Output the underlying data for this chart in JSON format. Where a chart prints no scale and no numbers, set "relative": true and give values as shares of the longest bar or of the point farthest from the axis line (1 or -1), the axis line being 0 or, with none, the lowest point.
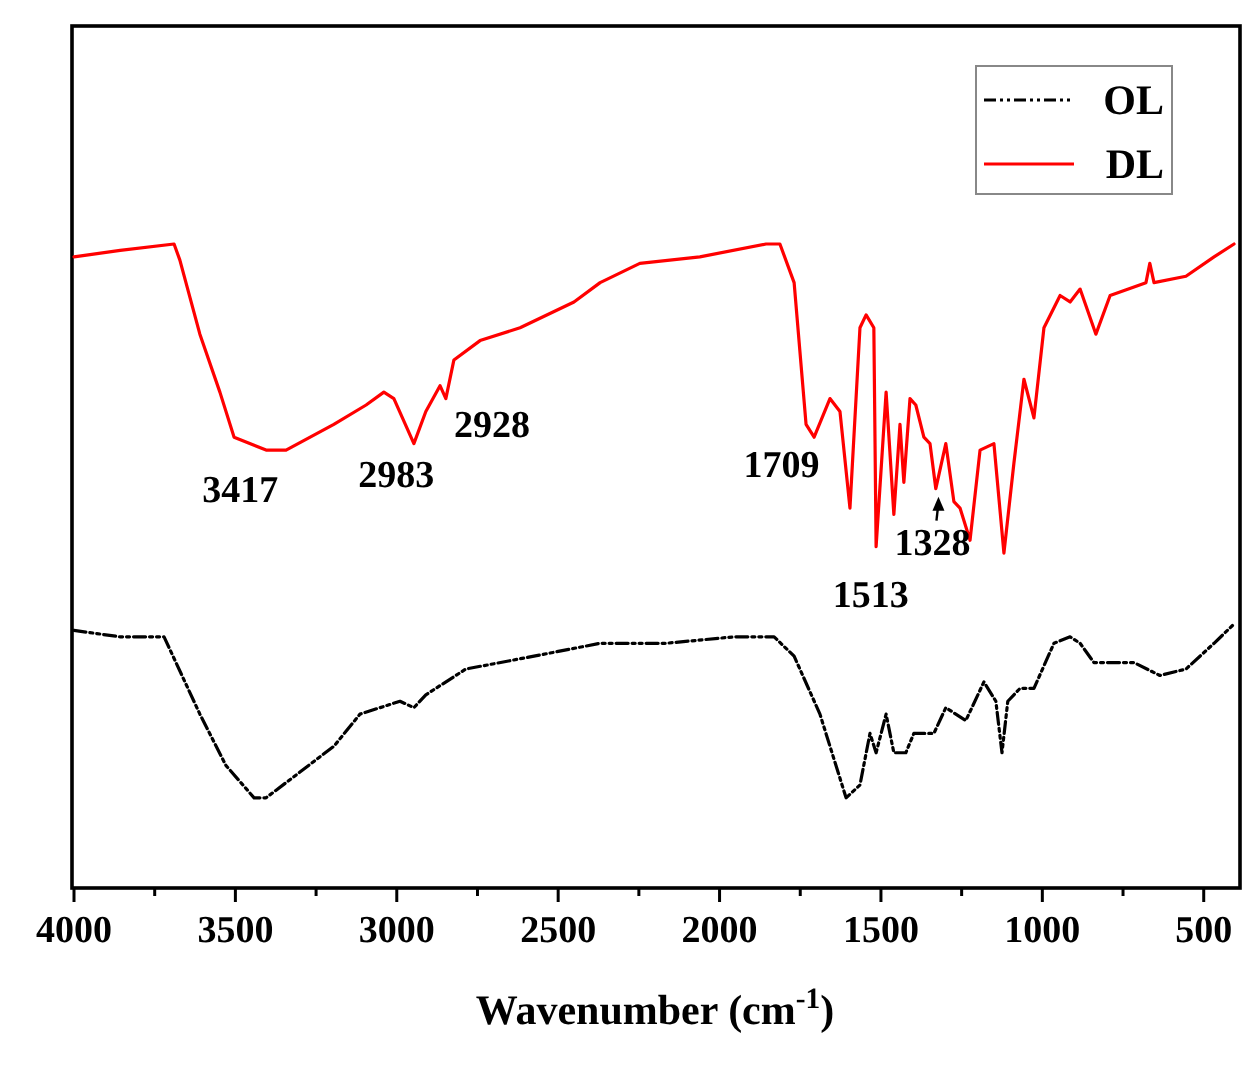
{
  "chart_data": {
    "type": "line",
    "relative": true,
    "xlabel": "Wavenumber (cm$^{-1}$)",
    "xlim": [
      4000,
      400
    ],
    "xticks": [
      4000,
      {
        "value": 3750,
        "label": null
      },
      3500,
      {
        "value": 3250,
        "label": null
      },
      3000,
      {
        "value": 2750,
        "label": null
      },
      2500,
      {
        "value": 2250,
        "label": null
      },
      2000,
      {
        "value": 1750,
        "label": null
      },
      1500,
      {
        "value": 1250,
        "label": null
      },
      1000,
      {
        "value": 750,
        "label": null
      },
      500
    ],
    "legend": "top right",
    "series": [
      {
        "name": "OL",
        "color": "#000000",
        "line_style": "dashed",
        "x": [
          4000,
          3857,
          3721,
          3684,
          3610,
          3529,
          3442,
          3405,
          3300,
          3195,
          3114,
          2990,
          2947,
          2910,
          2786,
          2575,
          2370,
          2166,
          1955,
          1831,
          1769,
          1689,
          1608,
          1565,
          1534,
          1515,
          1484,
          1460,
          1423,
          1398,
          1336,
          1299,
          1237,
          1181,
          1144,
          1125,
          1107,
          1069,
          1026,
          964,
          914,
          883,
          840,
          716,
          636,
          555,
          468,
          406
        ],
        "values": [
          0.4,
          0.39,
          0.39,
          0.35,
          0.27,
          0.19,
          0.14,
          0.14,
          0.18,
          0.22,
          0.27,
          0.29,
          0.28,
          0.3,
          0.34,
          0.36,
          0.38,
          0.38,
          0.39,
          0.39,
          0.36,
          0.27,
          0.14,
          0.16,
          0.24,
          0.21,
          0.27,
          0.21,
          0.21,
          0.24,
          0.24,
          0.28,
          0.26,
          0.32,
          0.29,
          0.21,
          0.29,
          0.31,
          0.31,
          0.38,
          0.39,
          0.38,
          0.35,
          0.35,
          0.33,
          0.34,
          0.38,
          0.41
        ]
      },
      {
        "name": "DL",
        "color": "#ff0000",
        "line_style": "solid",
        "x": [
          4000,
          3857,
          3690,
          3672,
          3610,
          3548,
          3504,
          3405,
          3343,
          3195,
          3095,
          3040,
          3009,
          2947,
          2910,
          2866,
          2848,
          2823,
          2742,
          2618,
          2451,
          2370,
          2247,
          2061,
          1856,
          1813,
          1769,
          1732,
          1707,
          1658,
          1627,
          1596,
          1565,
          1546,
          1522,
          1515,
          1484,
          1460,
          1441,
          1429,
          1410,
          1392,
          1367,
          1348,
          1330,
          1299,
          1274,
          1255,
          1224,
          1193,
          1150,
          1119,
          1088,
          1057,
          1026,
          995,
          945,
          914,
          883,
          834,
          790,
          679,
          667,
          654,
          555,
          468,
          406
        ],
        "values": [
          0.98,
          0.99,
          1,
          0.975,
          0.86,
          0.77,
          0.7,
          0.68,
          0.68,
          0.72,
          0.75,
          0.77,
          0.76,
          0.69,
          0.74,
          0.78,
          0.76,
          0.82,
          0.85,
          0.87,
          0.91,
          0.94,
          0.97,
          0.98,
          1,
          1,
          0.94,
          0.72,
          0.7,
          0.76,
          0.74,
          0.59,
          0.87,
          0.89,
          0.87,
          0.53,
          0.77,
          0.58,
          0.72,
          0.63,
          0.76,
          0.75,
          0.7,
          0.69,
          0.62,
          0.69,
          0.6,
          0.59,
          0.54,
          0.68,
          0.69,
          0.52,
          0.66,
          0.79,
          0.73,
          0.87,
          0.92,
          0.91,
          0.93,
          0.86,
          0.92,
          0.94,
          0.97,
          0.94,
          0.95,
          0.98,
          1
        ]
      }
    ],
    "annotations": [
      {
        "text": "3417",
        "x": 3417,
        "y": 0.68
      },
      {
        "text": "2983",
        "x": 2983,
        "y": 0.7
      },
      {
        "text": "2928",
        "x": 2928,
        "y": 0.74
      },
      {
        "text": "1709",
        "x": 1709,
        "y": 0.7
      },
      {
        "text": "1513",
        "x": 1513,
        "y": 0.53
      },
      {
        "text": "1328",
        "x": 1328,
        "y": 0.62
      }
    ]
  }
}
